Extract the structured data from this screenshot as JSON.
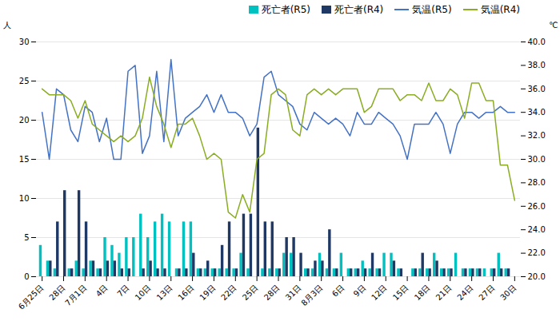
{
  "chart_data": {
    "type": "bar",
    "ylabel": "人",
    "y2label": "℃",
    "categories": [
      "6月25日",
      null,
      null,
      "28日",
      null,
      null,
      "7月1日",
      null,
      null,
      "4日",
      null,
      null,
      "7日",
      null,
      null,
      "10日",
      null,
      null,
      "13日",
      null,
      null,
      "16日",
      null,
      null,
      "19日",
      null,
      null,
      "22日",
      null,
      null,
      "25日",
      null,
      null,
      "28日",
      null,
      null,
      "31日",
      null,
      null,
      "8月3日",
      null,
      null,
      "6日",
      null,
      null,
      "9日",
      null,
      null,
      "12日",
      null,
      null,
      "15日",
      null,
      null,
      "18日",
      null,
      null,
      "21日",
      null,
      null,
      "24日",
      null,
      null,
      "27日",
      null,
      null,
      "30日"
    ],
    "series": [
      {
        "name": "死亡者(R5)",
        "type": "bar",
        "color": "#00C0C0",
        "values": [
          4,
          2,
          1,
          0,
          1,
          2,
          1,
          2,
          1,
          5,
          4,
          3,
          5,
          5,
          8,
          5,
          7,
          8,
          7,
          1,
          7,
          7,
          1,
          1,
          1,
          1,
          1,
          1,
          3,
          1,
          0,
          1,
          1,
          1,
          3,
          3,
          0,
          1,
          1,
          3,
          1,
          1,
          3,
          1,
          1,
          2,
          1,
          1,
          3,
          3,
          1,
          0,
          1,
          1,
          1,
          3,
          1,
          1,
          3,
          1,
          1,
          1,
          1,
          1,
          3,
          1,
          0
        ]
      },
      {
        "name": "死亡者(R4)",
        "type": "bar",
        "color": "#1F3864",
        "values": [
          0,
          2,
          7,
          11,
          1,
          11,
          7,
          2,
          1,
          2,
          2,
          1,
          1,
          0,
          1,
          2,
          1,
          1,
          0,
          1,
          1,
          3,
          1,
          2,
          1,
          4,
          7,
          1,
          8,
          8,
          19,
          7,
          7,
          1,
          5,
          5,
          3,
          1,
          2,
          2,
          6,
          1,
          0,
          1,
          1,
          1,
          3,
          1,
          0,
          2,
          1,
          0,
          1,
          3,
          1,
          2,
          1,
          1,
          0,
          1,
          1,
          1,
          0,
          1,
          1,
          1,
          0
        ]
      },
      {
        "name": "気温(R5)",
        "type": "line",
        "axis": "y2",
        "color": "#4472C4",
        "values": [
          34.0,
          30.0,
          36.0,
          35.5,
          32.5,
          31.5,
          34.5,
          34.0,
          31.5,
          33.5,
          30.0,
          30.0,
          37.5,
          38.0,
          30.5,
          32.0,
          37.5,
          31.5,
          38.5,
          32.0,
          33.5,
          34.0,
          34.5,
          35.5,
          34.0,
          35.5,
          34.0,
          34.0,
          33.5,
          32.0,
          33.0,
          37.0,
          37.5,
          35.5,
          35.0,
          34.5,
          33.0,
          32.5,
          34.0,
          33.5,
          33.0,
          33.5,
          33.0,
          32.0,
          34.0,
          33.0,
          33.0,
          34.0,
          33.5,
          33.0,
          32.0,
          30.0,
          33.0,
          33.0,
          33.0,
          34.0,
          33.0,
          30.5,
          33.0,
          34.0,
          34.0,
          33.5,
          34.0,
          34.0,
          34.5,
          34.0,
          34.0
        ]
      },
      {
        "name": "気温(R4)",
        "type": "line",
        "axis": "y2",
        "color": "#8AAD23",
        "values": [
          36.0,
          35.5,
          35.5,
          35.5,
          35.0,
          33.5,
          35.0,
          33.0,
          32.5,
          32.0,
          31.5,
          32.0,
          31.5,
          32.0,
          33.5,
          37.0,
          34.5,
          33.0,
          31.0,
          33.0,
          33.0,
          33.5,
          32.0,
          30.0,
          30.5,
          30.0,
          25.5,
          25.0,
          27.0,
          25.5,
          30.0,
          30.5,
          35.5,
          36.0,
          35.5,
          32.5,
          32.0,
          35.5,
          36.0,
          35.5,
          36.0,
          35.5,
          36.0,
          36.0,
          36.0,
          34.0,
          34.5,
          36.0,
          36.0,
          36.0,
          35.0,
          35.5,
          35.5,
          35.0,
          36.5,
          35.0,
          35.0,
          36.0,
          35.5,
          33.5,
          36.5,
          36.5,
          35.0,
          35.0,
          29.5,
          29.5,
          26.5
        ]
      }
    ],
    "ylim": [
      0,
      30
    ],
    "yticks": [
      0,
      5,
      10,
      15,
      20,
      25,
      30
    ],
    "y2lim": [
      20.0,
      40.0
    ],
    "y2ticks": [
      {
        "value": 20,
        "label": "20.0"
      },
      {
        "value": 22,
        "label": "22.0"
      },
      {
        "value": 24,
        "label": "24.0"
      },
      {
        "value": 26,
        "label": "26.0"
      },
      {
        "value": 28,
        "label": "28.0"
      },
      {
        "value": 30,
        "label": "30.0"
      },
      {
        "value": 32,
        "label": "32.0"
      },
      {
        "value": 34,
        "label": "34.0"
      },
      {
        "value": 36,
        "label": "36.0"
      },
      {
        "value": 38,
        "label": "38.0"
      },
      {
        "value": 40,
        "label": "40.0"
      }
    ],
    "grid": true,
    "legend": "upper right"
  }
}
